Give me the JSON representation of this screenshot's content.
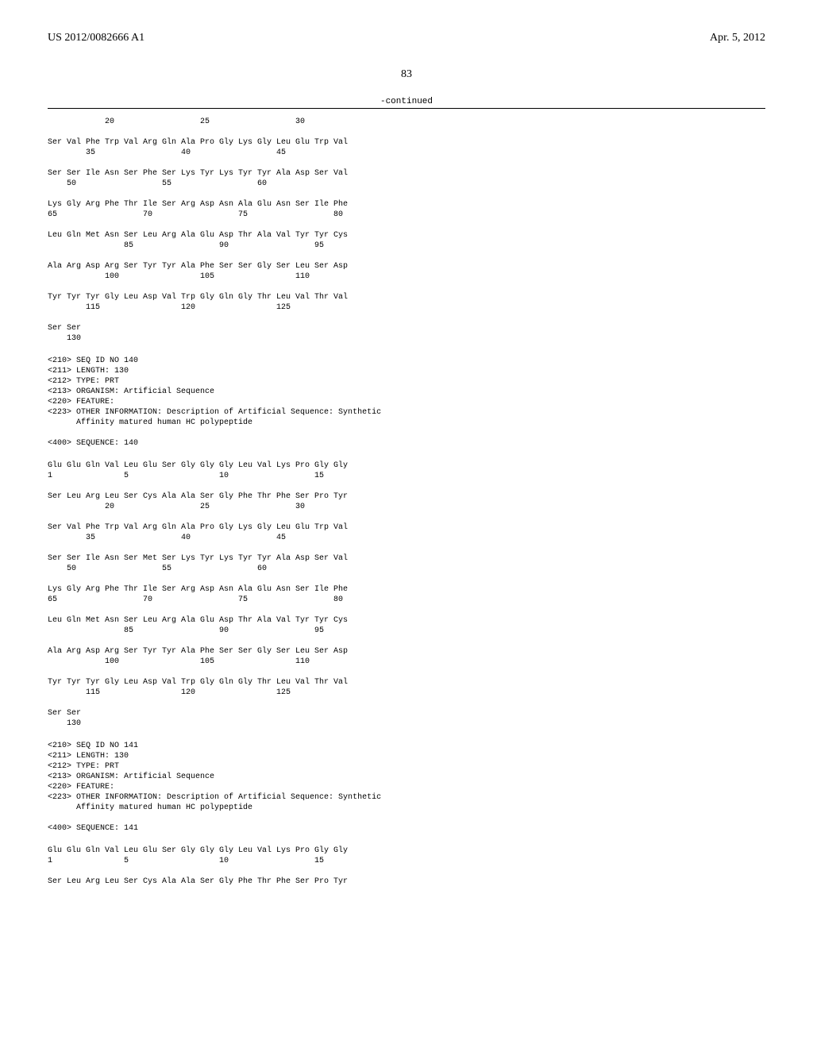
{
  "header": {
    "pub_number": "US 2012/0082666 A1",
    "pub_date": "Apr. 5, 2012"
  },
  "page_number": "83",
  "continued_label": "-continued",
  "seq139_partial": {
    "lines": [
      "            20                  25                  30",
      "",
      "Ser Val Phe Trp Val Arg Gln Ala Pro Gly Lys Gly Leu Glu Trp Val",
      "        35                  40                  45",
      "",
      "Ser Ser Ile Asn Ser Phe Ser Lys Tyr Lys Tyr Tyr Ala Asp Ser Val",
      "    50                  55                  60",
      "",
      "Lys Gly Arg Phe Thr Ile Ser Arg Asp Asn Ala Glu Asn Ser Ile Phe",
      "65                  70                  75                  80",
      "",
      "Leu Gln Met Asn Ser Leu Arg Ala Glu Asp Thr Ala Val Tyr Tyr Cys",
      "                85                  90                  95",
      "",
      "Ala Arg Asp Arg Ser Tyr Tyr Ala Phe Ser Ser Gly Ser Leu Ser Asp",
      "            100                 105                 110",
      "",
      "Tyr Tyr Tyr Gly Leu Asp Val Trp Gly Gln Gly Thr Leu Val Thr Val",
      "        115                 120                 125",
      "",
      "Ser Ser",
      "    130"
    ]
  },
  "metadata140": {
    "lines": [
      "<210> SEQ ID NO 140",
      "<211> LENGTH: 130",
      "<212> TYPE: PRT",
      "<213> ORGANISM: Artificial Sequence",
      "<220> FEATURE:",
      "<223> OTHER INFORMATION: Description of Artificial Sequence: Synthetic",
      "      Affinity matured human HC polypeptide",
      "",
      "<400> SEQUENCE: 140"
    ]
  },
  "seq140": {
    "lines": [
      "Glu Glu Gln Val Leu Glu Ser Gly Gly Gly Leu Val Lys Pro Gly Gly",
      "1               5                   10                  15",
      "",
      "Ser Leu Arg Leu Ser Cys Ala Ala Ser Gly Phe Thr Phe Ser Pro Tyr",
      "            20                  25                  30",
      "",
      "Ser Val Phe Trp Val Arg Gln Ala Pro Gly Lys Gly Leu Glu Trp Val",
      "        35                  40                  45",
      "",
      "Ser Ser Ile Asn Ser Met Ser Lys Tyr Lys Tyr Tyr Ala Asp Ser Val",
      "    50                  55                  60",
      "",
      "Lys Gly Arg Phe Thr Ile Ser Arg Asp Asn Ala Glu Asn Ser Ile Phe",
      "65                  70                  75                  80",
      "",
      "Leu Gln Met Asn Ser Leu Arg Ala Glu Asp Thr Ala Val Tyr Tyr Cys",
      "                85                  90                  95",
      "",
      "Ala Arg Asp Arg Ser Tyr Tyr Ala Phe Ser Ser Gly Ser Leu Ser Asp",
      "            100                 105                 110",
      "",
      "Tyr Tyr Tyr Gly Leu Asp Val Trp Gly Gln Gly Thr Leu Val Thr Val",
      "        115                 120                 125",
      "",
      "Ser Ser",
      "    130"
    ]
  },
  "metadata141": {
    "lines": [
      "<210> SEQ ID NO 141",
      "<211> LENGTH: 130",
      "<212> TYPE: PRT",
      "<213> ORGANISM: Artificial Sequence",
      "<220> FEATURE:",
      "<223> OTHER INFORMATION: Description of Artificial Sequence: Synthetic",
      "      Affinity matured human HC polypeptide",
      "",
      "<400> SEQUENCE: 141"
    ]
  },
  "seq141_partial": {
    "lines": [
      "Glu Glu Gln Val Leu Glu Ser Gly Gly Gly Leu Val Lys Pro Gly Gly",
      "1               5                   10                  15",
      "",
      "Ser Leu Arg Leu Ser Cys Ala Ala Ser Gly Phe Thr Phe Ser Pro Tyr"
    ]
  }
}
